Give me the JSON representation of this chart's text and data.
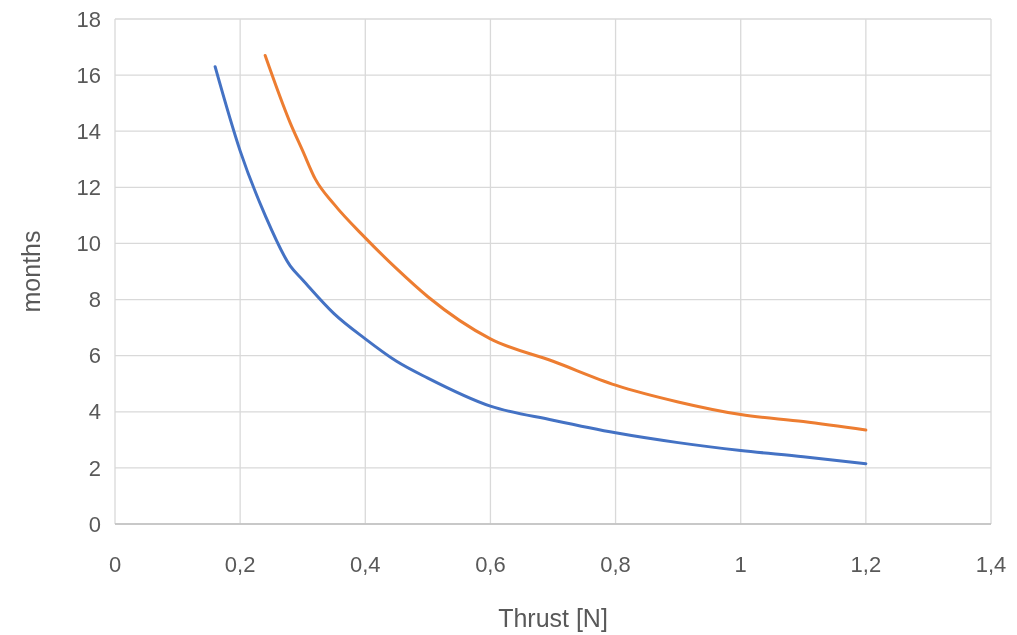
{
  "chart_data": {
    "type": "line",
    "xlabel": "Thrust [N]",
    "ylabel": "months",
    "xlim": [
      0,
      1.4
    ],
    "xticks": [
      0,
      {
        "value": 0.2,
        "label": "0,2"
      },
      {
        "value": 0.4,
        "label": "0,4"
      },
      {
        "value": 0.6,
        "label": "0,6"
      },
      {
        "value": 0.8,
        "label": "0,8"
      },
      1,
      {
        "value": 1.2,
        "label": "1,2"
      },
      {
        "value": 1.4,
        "label": "1,4"
      }
    ],
    "ylim": [
      0,
      18
    ],
    "yticks": [
      0,
      2,
      4,
      6,
      8,
      10,
      12,
      14,
      16,
      18
    ],
    "grid": true,
    "marker": "none",
    "line_style": "solid",
    "series": [
      {
        "color": "#4472c4",
        "x": [
          0.16,
          0.2,
          0.24,
          0.28,
          0.3,
          0.35,
          0.4,
          0.45,
          0.5,
          0.6,
          0.7,
          0.8,
          0.9,
          1.0,
          1.1,
          1.2
        ],
        "values": [
          16.3,
          13.3,
          11,
          9.2,
          8.7,
          7.5,
          6.6,
          5.8,
          5.2,
          4.2,
          3.7,
          3.25,
          2.9,
          2.62,
          2.4,
          2.15
        ]
      },
      {
        "color": "#ed7d31",
        "x": [
          0.24,
          0.28,
          0.3,
          0.32,
          0.35,
          0.4,
          0.45,
          0.5,
          0.6,
          0.7,
          0.8,
          0.9,
          1.0,
          1.1,
          1.2
        ],
        "values": [
          16.7,
          14.3,
          13.3,
          12.3,
          11.4,
          10.2,
          9.1,
          8.1,
          6.6,
          5.8,
          4.95,
          4.35,
          3.9,
          3.65,
          3.35
        ]
      }
    ]
  }
}
